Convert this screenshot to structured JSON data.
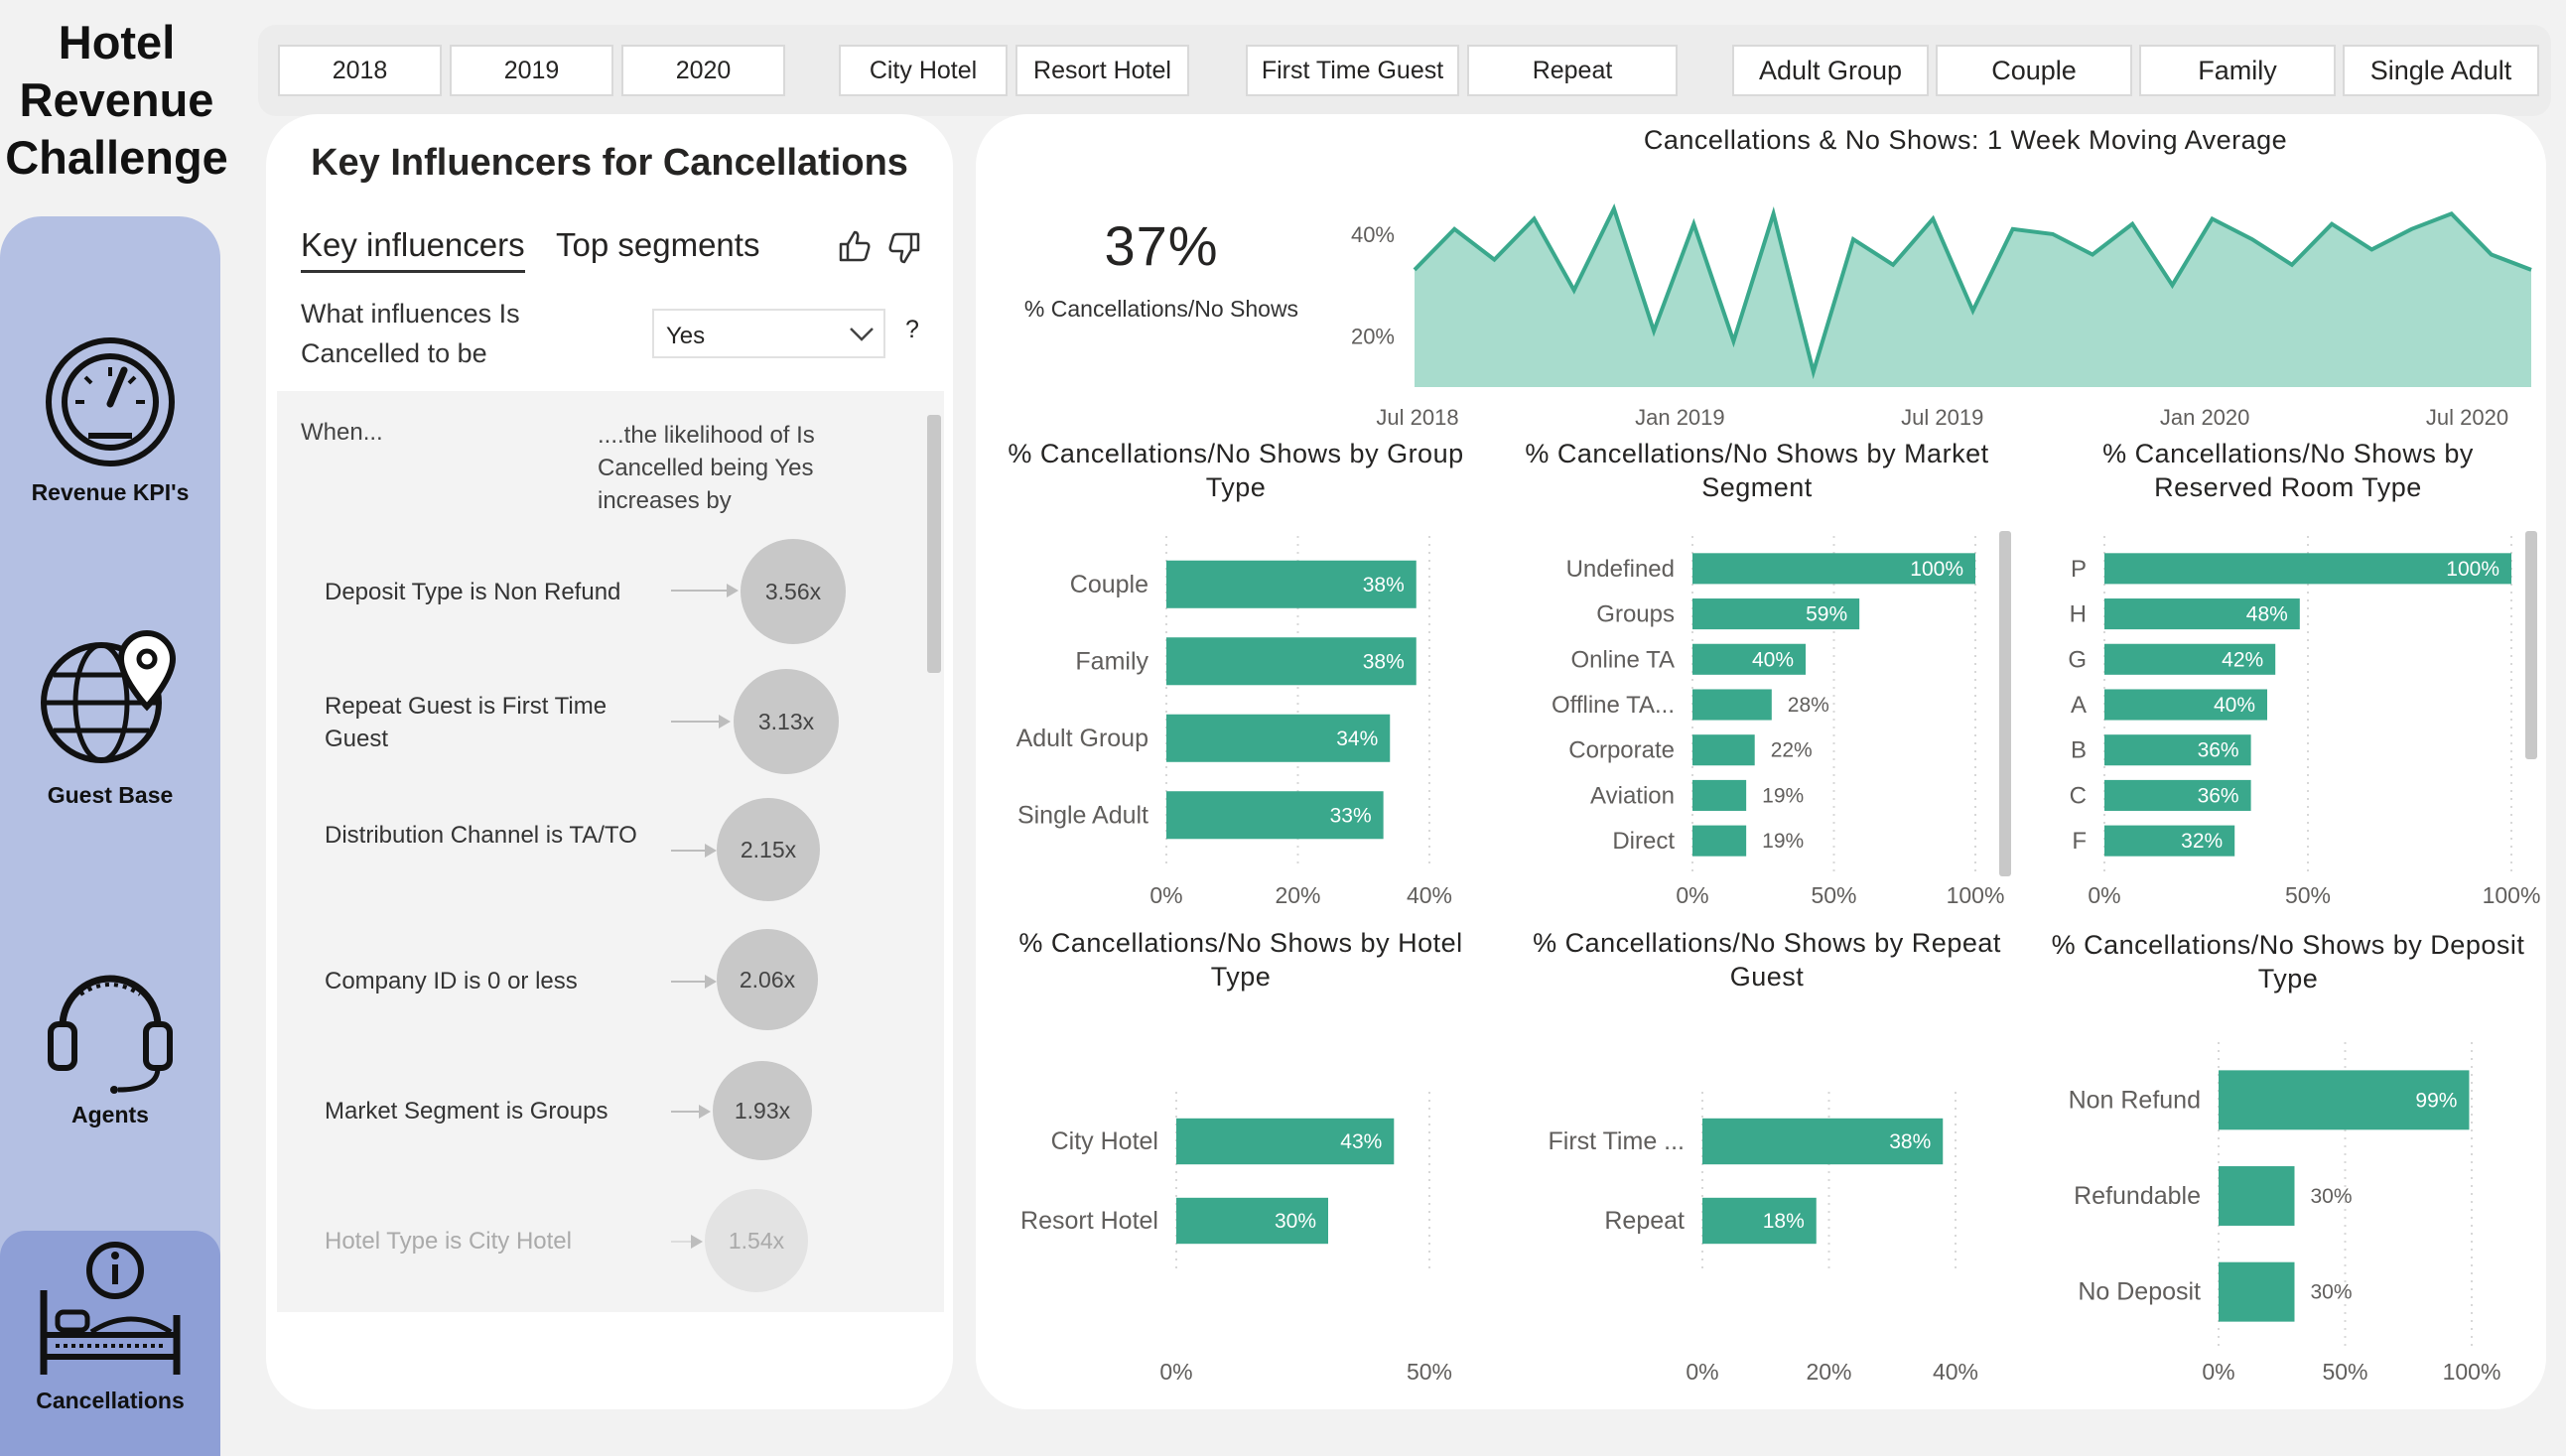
{
  "app_title": [
    "Hotel",
    "Revenue",
    "Challenge"
  ],
  "nav": {
    "revenue": "Revenue KPI's",
    "guests": "Guest Base",
    "agents": "Agents",
    "cancellations": "Cancellations"
  },
  "slicers": {
    "years": [
      "2018",
      "2019",
      "2020"
    ],
    "hotels": [
      "City Hotel",
      "Resort Hotel"
    ],
    "guest_types": [
      "First Time Guest",
      "Repeat"
    ],
    "groups": [
      "Adult Group",
      "Couple",
      "Family",
      "Single Adult"
    ]
  },
  "influencers": {
    "title": "Key Influencers for Cancellations",
    "tab_key": "Key influencers",
    "tab_top": "Top segments",
    "question_1": "What influences Is",
    "question_2": "Cancelled to be",
    "dropdown_value": "Yes",
    "help": "?",
    "col_when": "When...",
    "col_likelihood": "....the likelihood of Is Cancelled being Yes increases by",
    "rows": [
      {
        "text": "Deposit Type is Non Refund",
        "value": "3.56x"
      },
      {
        "text": "Repeat Guest is First Time Guest",
        "value": "3.13x"
      },
      {
        "text": "Distribution Channel is TA/TO",
        "value": "2.15x"
      },
      {
        "text": "Company ID is 0 or less",
        "value": "2.06x"
      },
      {
        "text": "Market Segment is Groups",
        "value": "1.93x"
      },
      {
        "text": "Hotel Type is City Hotel",
        "value": "1.54x"
      }
    ]
  },
  "kpi": {
    "value": "37%",
    "label": "% Cancellations/No Shows"
  },
  "colors": {
    "teal": "#3aa88c",
    "teal_area": "#a8dccd",
    "nav": "#b4c0e3",
    "nav_active": "#8e9fd6"
  },
  "chart_data": [
    {
      "type": "area",
      "title": "Cancellations & No Shows: 1 Week Moving Average",
      "x_ticks": [
        "Jul 2018",
        "Jan 2019",
        "Jul 2019",
        "Jan 2020",
        "Jul 2020"
      ],
      "y_ticks": [
        "20%",
        "40%"
      ],
      "ylim": [
        0.1,
        0.47
      ],
      "x": [
        0,
        4,
        8,
        12,
        16,
        20,
        24,
        28,
        32,
        36,
        40,
        44,
        48,
        52,
        56,
        60,
        64,
        68,
        72,
        76,
        80,
        84,
        88,
        92,
        96,
        100,
        104,
        108,
        112
      ],
      "values": [
        0.33,
        0.41,
        0.35,
        0.43,
        0.29,
        0.45,
        0.21,
        0.42,
        0.19,
        0.44,
        0.13,
        0.39,
        0.34,
        0.43,
        0.25,
        0.41,
        0.4,
        0.36,
        0.42,
        0.3,
        0.43,
        0.39,
        0.34,
        0.42,
        0.37,
        0.41,
        0.44,
        0.36,
        0.33
      ]
    },
    {
      "type": "bar",
      "title": "% Cancellations/No Shows by Group Type",
      "categories": [
        "Couple",
        "Family",
        "Adult Group",
        "Single Adult"
      ],
      "values": [
        38,
        38,
        34,
        33
      ],
      "labels": [
        "38%",
        "38%",
        "34%",
        "33%"
      ],
      "x_ticks": [
        "0%",
        "20%",
        "40%"
      ],
      "xlim": [
        0,
        40
      ]
    },
    {
      "type": "bar",
      "title": "% Cancellations/No Shows by Market Segment",
      "categories": [
        "Undefined",
        "Groups",
        "Online TA",
        "Offline TA...",
        "Corporate",
        "Aviation",
        "Direct"
      ],
      "values": [
        100,
        59,
        40,
        28,
        22,
        19,
        19
      ],
      "labels": [
        "100%",
        "59%",
        "40%",
        "28%",
        "22%",
        "19%",
        "19%"
      ],
      "x_ticks": [
        "0%",
        "50%",
        "100%"
      ],
      "xlim": [
        0,
        100
      ]
    },
    {
      "type": "bar",
      "title": "% Cancellations/No Shows by Reserved Room Type",
      "categories": [
        "P",
        "H",
        "G",
        "A",
        "B",
        "C",
        "F"
      ],
      "values": [
        100,
        48,
        42,
        40,
        36,
        36,
        32
      ],
      "labels": [
        "100%",
        "48%",
        "42%",
        "40%",
        "36%",
        "36%",
        "32%"
      ],
      "x_ticks": [
        "0%",
        "50%",
        "100%"
      ],
      "xlim": [
        0,
        100
      ]
    },
    {
      "type": "bar",
      "title": "% Cancellations/No Shows by Hotel Type",
      "categories": [
        "City Hotel",
        "Resort Hotel"
      ],
      "values": [
        43,
        30
      ],
      "labels": [
        "43%",
        "30%"
      ],
      "x_ticks": [
        "0%",
        "50%"
      ],
      "xlim": [
        0,
        50
      ]
    },
    {
      "type": "bar",
      "title": "% Cancellations/No Shows by Repeat Guest",
      "categories": [
        "First Time ...",
        "Repeat"
      ],
      "values": [
        38,
        18
      ],
      "labels": [
        "38%",
        "18%"
      ],
      "x_ticks": [
        "0%",
        "20%",
        "40%"
      ],
      "xlim": [
        0,
        40
      ]
    },
    {
      "type": "bar",
      "title": "% Cancellations/No Shows by Deposit Type",
      "categories": [
        "Non Refund",
        "Refundable",
        "No Deposit"
      ],
      "values": [
        99,
        30,
        30
      ],
      "labels": [
        "99%",
        "30%",
        "30%"
      ],
      "x_ticks": [
        "0%",
        "50%",
        "100%"
      ],
      "xlim": [
        0,
        100
      ]
    }
  ]
}
